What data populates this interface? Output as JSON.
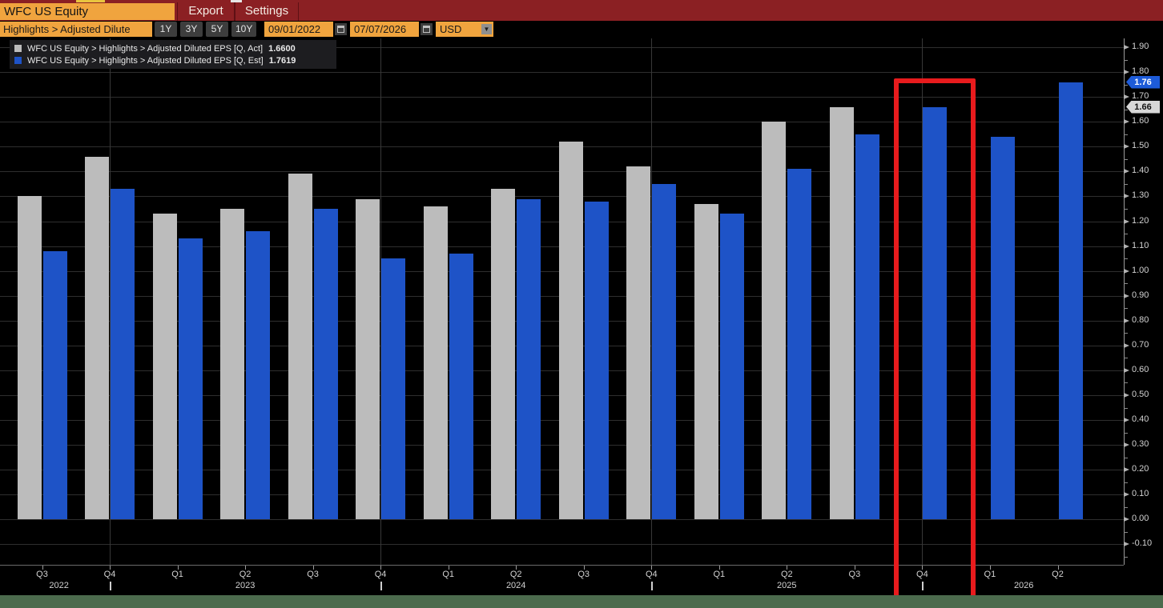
{
  "header": {
    "ticker_input": "WFC US Equity",
    "export_label": "Export",
    "settings_label": "Settings"
  },
  "toolbar": {
    "breadcrumb_input": "Highlights > Adjusted Dilute",
    "range_buttons": [
      "1Y",
      "3Y",
      "5Y",
      "10Y"
    ],
    "date_from": "09/01/2022",
    "date_to": "07/07/2026",
    "currency_select": "USD"
  },
  "legend": [
    {
      "series": "act",
      "color": "#bcbcbc",
      "label": "WFC US Equity > Highlights > Adjusted Diluted EPS [Q, Act]",
      "value": "1.6600"
    },
    {
      "series": "est",
      "color": "#1e53c7",
      "label": "WFC US Equity > Highlights > Adjusted Diluted EPS [Q, Est]",
      "value": "1.7619"
    }
  ],
  "chart_data": {
    "type": "bar",
    "categories": [
      "Q3 2022",
      "Q4 2022",
      "Q1 2023",
      "Q2 2023",
      "Q3 2023",
      "Q4 2023",
      "Q1 2024",
      "Q2 2024",
      "Q3 2024",
      "Q4 2024",
      "Q1 2025",
      "Q2 2025",
      "Q3 2025",
      "Q4 2025",
      "Q1 2026",
      "Q2 2026"
    ],
    "quarter_labels": [
      "Q3",
      "Q4",
      "Q1",
      "Q2",
      "Q3",
      "Q4",
      "Q1",
      "Q2",
      "Q3",
      "Q4",
      "Q1",
      "Q2",
      "Q3",
      "Q4",
      "Q1",
      "Q2"
    ],
    "series": [
      {
        "name": "Adjusted Diluted EPS [Q, Act]",
        "color": "#bcbcbc",
        "values": [
          1.3,
          1.46,
          1.23,
          1.25,
          1.39,
          1.29,
          1.26,
          1.33,
          1.52,
          1.42,
          1.27,
          1.6,
          1.66,
          null,
          null,
          null
        ]
      },
      {
        "name": "Adjusted Diluted EPS [Q, Est]",
        "color": "#1e53c7",
        "values": [
          1.08,
          1.33,
          1.13,
          1.16,
          1.25,
          1.05,
          1.07,
          1.29,
          1.28,
          1.35,
          1.23,
          1.41,
          1.55,
          1.66,
          1.54,
          1.76
        ]
      }
    ],
    "ylabel": "",
    "xlabel": "",
    "ylim": [
      -0.175,
      1.955
    ],
    "ytick_step": 0.1,
    "ytick_label_min": -0.1,
    "ytick_label_max": 1.9,
    "grid": true,
    "legend_position": "top-left",
    "year_tick_indices": [
      1,
      5,
      9,
      13
    ],
    "year_labels": [
      {
        "text": "2022",
        "index": 0.25
      },
      {
        "text": "2023",
        "index": 3
      },
      {
        "text": "2024",
        "index": 7
      },
      {
        "text": "2025",
        "index": 11
      },
      {
        "text": "2026",
        "index": 14.5
      }
    ],
    "axis_tags": [
      {
        "label": "1.76",
        "value": 1.76,
        "bg": "#1d5bd8",
        "fg": "#ffffff"
      },
      {
        "label": "1.66",
        "value": 1.66,
        "bg": "#d8d8d8",
        "fg": "#111111"
      }
    ],
    "highlight": {
      "index": 13,
      "category": "Q4 2025",
      "color": "#e81b1d"
    }
  },
  "colors": {
    "header_bar": "#8b2023",
    "amber_field": "#f0a43e",
    "chart_background": "#000000",
    "actual_bar": "#bcbcbc",
    "estimate_bar": "#1e53c7",
    "highlight_box": "#e81b1d",
    "status_strip": "#4c6b4d"
  }
}
